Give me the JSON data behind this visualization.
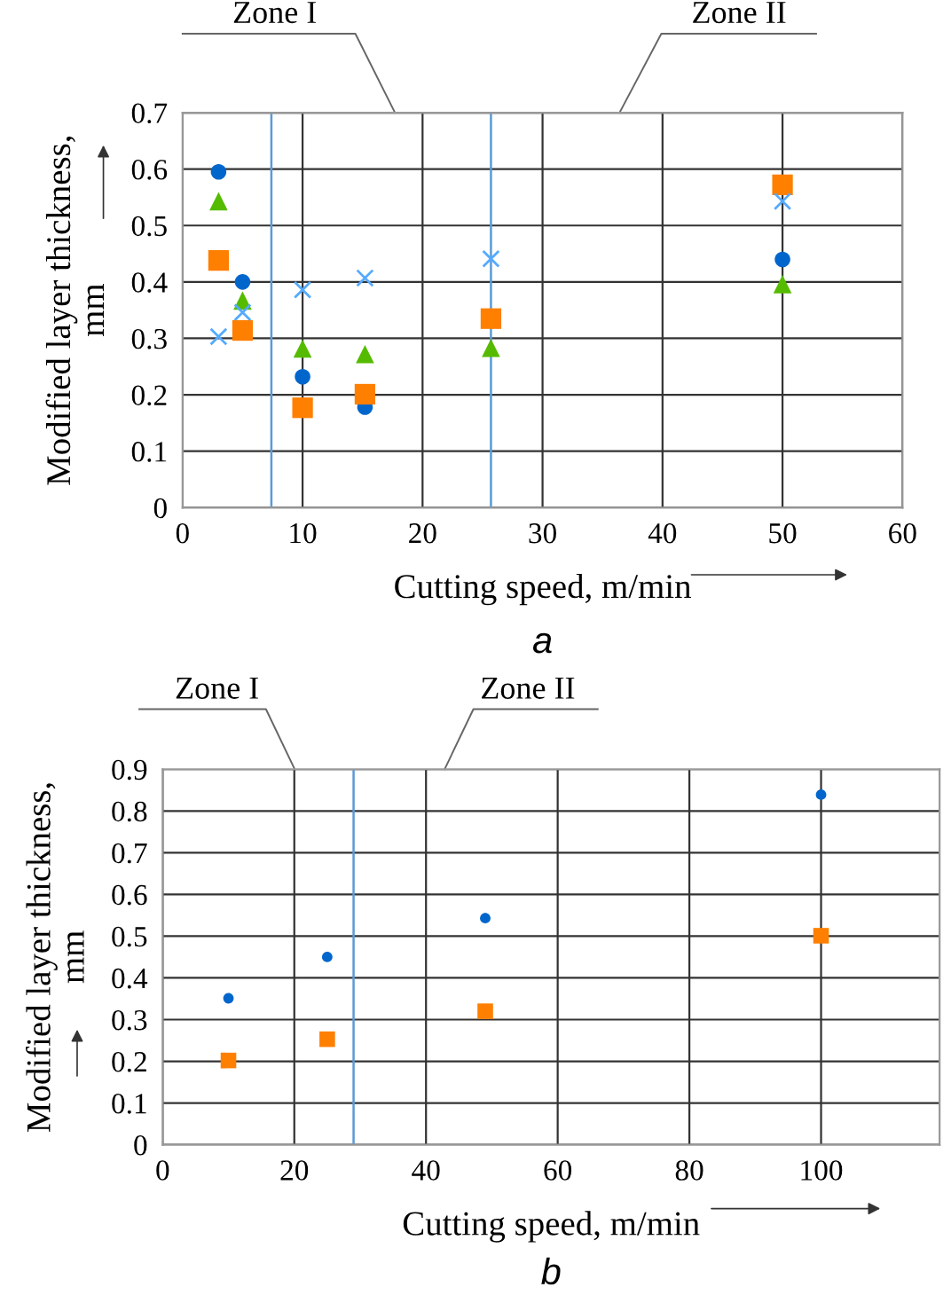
{
  "chart_data": [
    {
      "type": "scatter",
      "xlabel": "Cutting speed, m/min",
      "ylabel": "Modified layer thickness,\nmm",
      "xlim": [
        0,
        60
      ],
      "xticks": [
        0,
        10,
        20,
        30,
        40,
        50,
        60
      ],
      "ylim": [
        0,
        0.7
      ],
      "yticks": [
        0,
        0.1,
        0.2,
        0.3,
        0.4,
        0.5,
        0.6,
        0.7
      ],
      "grid": true,
      "series": [
        {
          "color": "#0066cc",
          "marker": "circle",
          "x": [
            3,
            5,
            10,
            15.2,
            50
          ],
          "values": [
            0.595,
            0.4,
            0.232,
            0.178,
            0.44
          ]
        },
        {
          "color": "#55bb00",
          "marker": "triangle",
          "x": [
            3,
            5,
            10,
            15.2,
            25.7,
            50
          ],
          "values": [
            0.543,
            0.367,
            0.282,
            0.272,
            0.283,
            0.396
          ]
        },
        {
          "color": "#ff7f00",
          "marker": "square",
          "x": [
            3,
            5,
            10,
            15.2,
            25.7,
            50
          ],
          "values": [
            0.438,
            0.314,
            0.177,
            0.201,
            0.335,
            0.572
          ]
        },
        {
          "color": "#55aaff",
          "marker": "cross",
          "x": [
            3,
            5,
            10,
            15.2,
            25.7,
            50
          ],
          "values": [
            0.303,
            0.346,
            0.386,
            0.407,
            0.441,
            0.543
          ]
        }
      ],
      "ref_lines": [
        {
          "axis": "x",
          "value": 7.4,
          "color": "#5b9bd5"
        },
        {
          "axis": "x",
          "value": 25.7,
          "color": "#5b9bd5"
        }
      ],
      "annotations": [
        "Zone I",
        "Zone II",
        "a"
      ]
    },
    {
      "type": "scatter",
      "xlabel": "Cutting speed, m/min",
      "ylabel": "Modified layer thickness,\nmm",
      "xlim": [
        0,
        118
      ],
      "xticks": [
        0,
        20,
        40,
        60,
        80,
        100
      ],
      "ylim": [
        0,
        0.9
      ],
      "yticks": [
        0,
        0.1,
        0.2,
        0.3,
        0.4,
        0.5,
        0.6,
        0.7,
        0.8,
        0.9
      ],
      "grid": true,
      "series": [
        {
          "color": "#0066cc",
          "marker": "circle",
          "x": [
            10,
            25,
            49,
            100
          ],
          "values": [
            0.351,
            0.45,
            0.543,
            0.839
          ]
        },
        {
          "color": "#ff7f00",
          "marker": "square",
          "x": [
            10,
            25,
            49,
            100
          ],
          "values": [
            0.202,
            0.253,
            0.32,
            0.501
          ]
        }
      ],
      "ref_lines": [
        {
          "axis": "x",
          "value": 29,
          "color": "#5b9bd5"
        }
      ],
      "annotations": [
        "Zone I",
        "Zone II",
        "b"
      ]
    }
  ]
}
